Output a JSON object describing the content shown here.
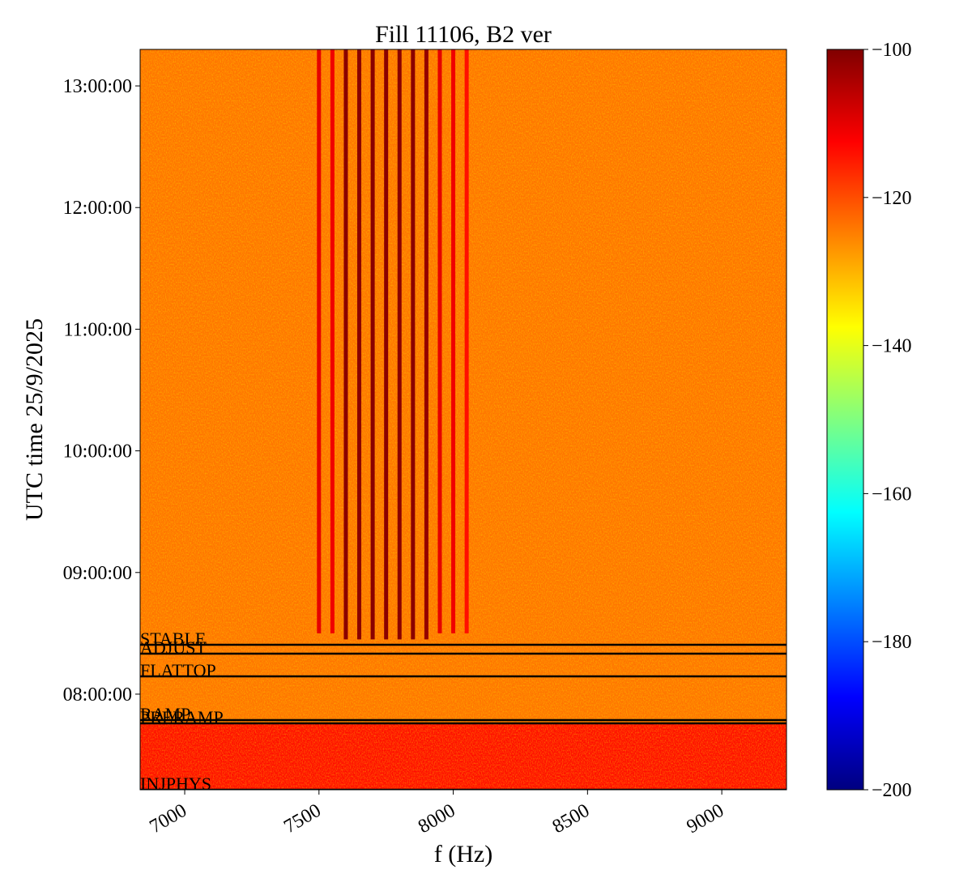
{
  "chart_data": {
    "type": "spectrogram",
    "title": "Fill 11106, B2 ver",
    "xlabel": "f (Hz)",
    "ylabel": "UTC time 25/9/2025",
    "xlim": [
      6834,
      9241
    ],
    "xticks": [
      7000,
      7500,
      8000,
      8500,
      9000
    ],
    "ylim": [
      7.214,
      13.3
    ],
    "yticks": [
      {
        "value": 8,
        "label": "08:00:00"
      },
      {
        "value": 9,
        "label": "09:00:00"
      },
      {
        "value": 10,
        "label": "10:00:00"
      },
      {
        "value": 11,
        "label": "11:00:00"
      },
      {
        "value": 12,
        "label": "12:00:00"
      },
      {
        "value": 13,
        "label": "13:00:00"
      }
    ],
    "colormap": "jet",
    "clim": [
      -200,
      -100
    ],
    "cticks": [
      {
        "value": -100,
        "label": "−100"
      },
      {
        "value": -120,
        "label": "−120"
      },
      {
        "value": -140,
        "label": "−140"
      },
      {
        "value": -160,
        "label": "−160"
      },
      {
        "value": -180,
        "label": "−180"
      },
      {
        "value": -200,
        "label": "−200"
      }
    ],
    "background": -124,
    "regions": [
      {
        "start": 7.214,
        "end": 7.76,
        "level": -114
      }
    ],
    "lines": [
      {
        "freq": 7500,
        "start": 8.5,
        "level": -110
      },
      {
        "freq": 7550,
        "start": 8.5,
        "level": -111
      },
      {
        "freq": 7600,
        "start": 8.45,
        "level": -101
      },
      {
        "freq": 7650,
        "start": 8.45,
        "level": -101
      },
      {
        "freq": 7700,
        "start": 8.45,
        "level": -101
      },
      {
        "freq": 7750,
        "start": 8.45,
        "level": -101
      },
      {
        "freq": 7800,
        "start": 8.45,
        "level": -101
      },
      {
        "freq": 7850,
        "start": 8.45,
        "level": -101
      },
      {
        "freq": 7900,
        "start": 8.45,
        "level": -102
      },
      {
        "freq": 7950,
        "start": 8.5,
        "level": -110
      },
      {
        "freq": 8000,
        "start": 8.5,
        "level": -111
      },
      {
        "freq": 8050,
        "start": 8.5,
        "level": -114
      }
    ],
    "annotations": [
      {
        "label": "STABLE",
        "time": 8.406
      },
      {
        "label": "ADJUST",
        "time": 8.333
      },
      {
        "label": "FLATTOP",
        "time": 8.146
      },
      {
        "label": "RAMP",
        "time": 7.787
      },
      {
        "label": "PRERAMP",
        "time": 7.76
      },
      {
        "label": "INJPHYS",
        "time": 7.214
      }
    ]
  }
}
